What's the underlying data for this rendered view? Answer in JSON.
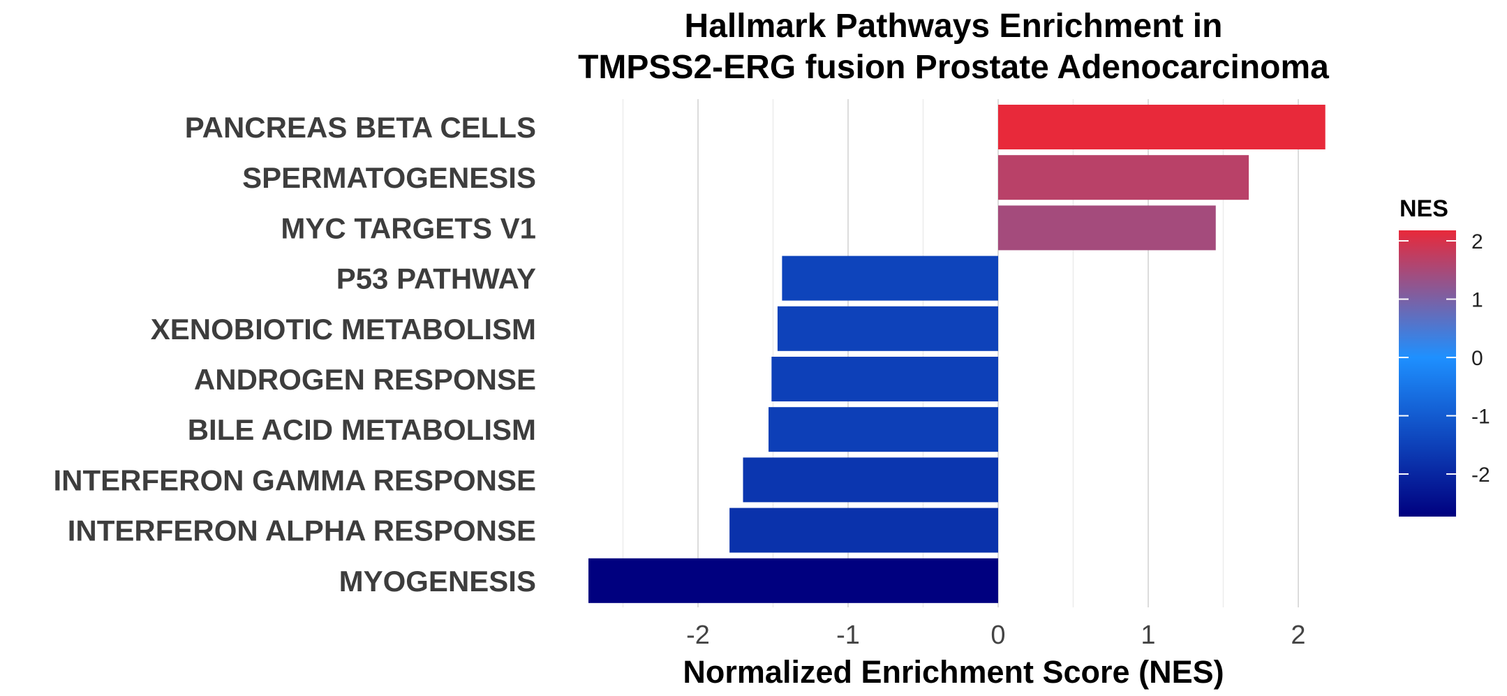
{
  "chart_data": {
    "type": "bar",
    "orientation": "horizontal",
    "title_lines": [
      "Hallmark Pathways Enrichment in",
      "TMPSS2-ERG fusion Prostate Adenocarcinoma"
    ],
    "xlabel": "Normalized Enrichment Score (NES)",
    "ylabel": "",
    "categories": [
      "PANCREAS BETA CELLS",
      "SPERMATOGENESIS",
      "MYC TARGETS V1",
      "P53 PATHWAY",
      "XENOBIOTIC METABOLISM",
      "ANDROGEN RESPONSE",
      "BILE ACID METABOLISM",
      "INTERFERON GAMMA RESPONSE",
      "INTERFERON ALPHA RESPONSE",
      "MYOGENESIS"
    ],
    "values": [
      2.18,
      1.67,
      1.45,
      -1.44,
      -1.47,
      -1.51,
      -1.53,
      -1.7,
      -1.79,
      -2.73
    ],
    "xlim": [
      -2.75,
      2.25
    ],
    "xticks": [
      -2,
      -1,
      0,
      1,
      2
    ],
    "xtick_labels": [
      "-2",
      "-1",
      "0",
      "1",
      "2"
    ],
    "grid": "vertical",
    "legend": {
      "title": "NES",
      "placement": "right",
      "type": "colorbar",
      "range": [
        -2.73,
        2.18
      ],
      "ticks": [
        2,
        1,
        0,
        -1,
        -2
      ],
      "tick_labels": [
        "2",
        "1",
        "0",
        "-1",
        "-2"
      ],
      "colors": {
        "low": "#00007f",
        "mid": "#1e90ff",
        "high": "#e8293a"
      }
    }
  }
}
